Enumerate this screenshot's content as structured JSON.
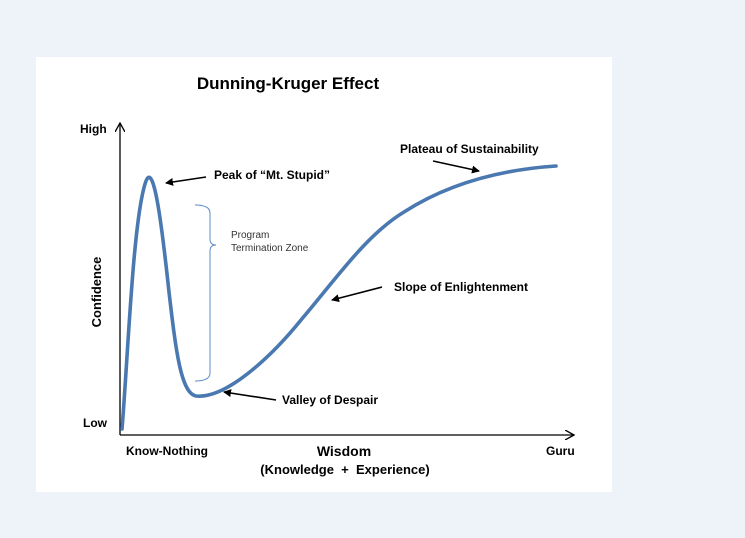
{
  "title": "Dunning-Kruger Effect",
  "y_axis": {
    "label": "Confidence",
    "high": "High",
    "low": "Low"
  },
  "x_axis": {
    "label": "Wisdom",
    "sublabel": "(Knowledge  +  Experience)",
    "start": "Know-Nothing",
    "end": "Guru"
  },
  "callouts": {
    "peak": "Peak of “Mt. Stupid”",
    "valley": "Valley of Despair",
    "slope": "Slope of Enlightenment",
    "plateau": "Plateau of Sustainability"
  },
  "zone": {
    "line1": "Program",
    "line2": "Termination Zone"
  },
  "colors": {
    "curve": "#4a78b0",
    "bracket": "#5b8cc8",
    "axis": "#000000"
  }
}
